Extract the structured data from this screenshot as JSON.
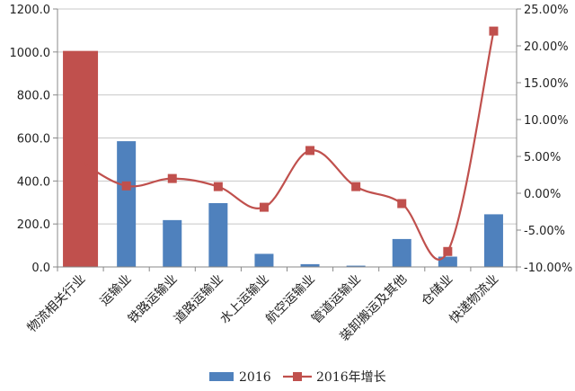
{
  "chart_data": {
    "type": "bar+line",
    "categories": [
      "物流相关行业",
      "运输业",
      "铁路运输业",
      "道路运输业",
      "水上运输业",
      "航空运输业",
      "管道运输业",
      "装卸搬运及其他",
      "仓储业",
      "快递物流业"
    ],
    "series": [
      {
        "name": "2016",
        "type": "bar",
        "axis": "left",
        "values": [
          1005,
          585,
          218,
          297,
          61,
          13,
          6,
          130,
          48,
          245
        ],
        "highlight_index": 0,
        "color": "#4F81BD",
        "highlight_color": "#C0504D"
      },
      {
        "name": "2016年增长",
        "type": "line",
        "axis": "right",
        "values": [
          4.3,
          1.0,
          2.0,
          0.9,
          -1.9,
          5.8,
          0.9,
          -1.4,
          -7.9,
          22.0
        ],
        "color": "#C0504D"
      }
    ],
    "y_left": {
      "ylim": [
        0,
        1200
      ],
      "ticks": [
        "0.0",
        "200.0",
        "400.0",
        "600.0",
        "800.0",
        "1000.0",
        "1200.0"
      ]
    },
    "y_right": {
      "ylim": [
        -10,
        25
      ],
      "ticks": [
        "-10.00%",
        "-5.00%",
        "0.00%",
        "5.00%",
        "10.00%",
        "15.00%",
        "20.00%",
        "25.00%"
      ]
    },
    "grid": true,
    "legend": {
      "position": "bottom",
      "items": [
        "2016",
        "2016年增长"
      ]
    }
  }
}
